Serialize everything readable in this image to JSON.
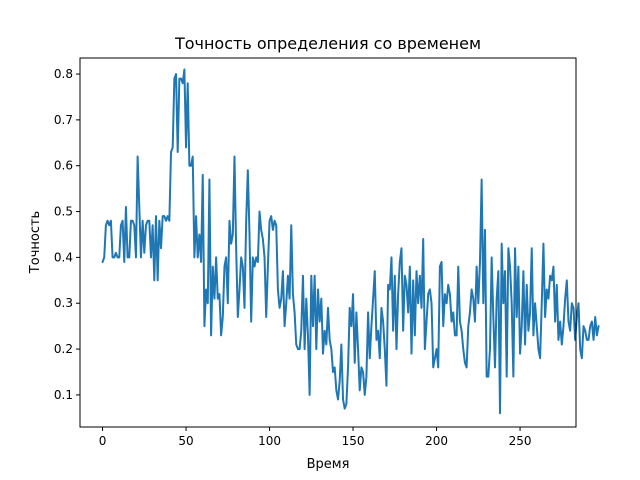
{
  "chart_data": {
    "type": "line",
    "title": "Точность определения со временем",
    "xlabel": "Время",
    "ylabel": "Точность",
    "xlim": [
      -13.5,
      283.5
    ],
    "ylim": [
      0.03,
      0.835
    ],
    "xticks": [
      0,
      50,
      100,
      150,
      200,
      250
    ],
    "yticks": [
      0.1,
      0.2,
      0.3,
      0.4,
      0.5,
      0.6,
      0.7,
      0.8
    ],
    "grid": false,
    "legend": "none",
    "line_color": "#1f77b4",
    "series": [
      {
        "values": [
          0.39,
          0.4,
          0.47,
          0.48,
          0.47,
          0.48,
          0.4,
          0.4,
          0.41,
          0.4,
          0.4,
          0.47,
          0.48,
          0.39,
          0.51,
          0.4,
          0.4,
          0.48,
          0.48,
          0.47,
          0.4,
          0.62,
          0.51,
          0.4,
          0.48,
          0.41,
          0.47,
          0.48,
          0.48,
          0.4,
          0.47,
          0.35,
          0.49,
          0.35,
          0.48,
          0.42,
          0.49,
          0.49,
          0.48,
          0.49,
          0.48,
          0.63,
          0.64,
          0.79,
          0.8,
          0.63,
          0.79,
          0.79,
          0.78,
          0.81,
          0.64,
          0.78,
          0.6,
          0.6,
          0.62,
          0.4,
          0.49,
          0.4,
          0.45,
          0.39,
          0.58,
          0.25,
          0.33,
          0.3,
          0.57,
          0.23,
          0.38,
          0.31,
          0.4,
          0.31,
          0.32,
          0.23,
          0.27,
          0.38,
          0.4,
          0.3,
          0.48,
          0.43,
          0.45,
          0.62,
          0.42,
          0.27,
          0.33,
          0.4,
          0.38,
          0.29,
          0.48,
          0.59,
          0.45,
          0.26,
          0.4,
          0.38,
          0.4,
          0.39,
          0.5,
          0.46,
          0.44,
          0.4,
          0.27,
          0.38,
          0.48,
          0.49,
          0.46,
          0.48,
          0.47,
          0.33,
          0.29,
          0.31,
          0.37,
          0.25,
          0.3,
          0.36,
          0.31,
          0.47,
          0.32,
          0.28,
          0.21,
          0.2,
          0.2,
          0.24,
          0.36,
          0.2,
          0.31,
          0.23,
          0.1,
          0.36,
          0.25,
          0.36,
          0.2,
          0.33,
          0.26,
          0.31,
          0.19,
          0.24,
          0.21,
          0.29,
          0.22,
          0.2,
          0.15,
          0.16,
          0.11,
          0.09,
          0.13,
          0.21,
          0.09,
          0.07,
          0.08,
          0.16,
          0.29,
          0.25,
          0.32,
          0.17,
          0.28,
          0.2,
          0.11,
          0.16,
          0.15,
          0.1,
          0.14,
          0.28,
          0.18,
          0.25,
          0.31,
          0.37,
          0.22,
          0.24,
          0.18,
          0.29,
          0.26,
          0.2,
          0.12,
          0.34,
          0.33,
          0.4,
          0.24,
          0.36,
          0.2,
          0.32,
          0.39,
          0.42,
          0.24,
          0.36,
          0.34,
          0.28,
          0.38,
          0.19,
          0.35,
          0.23,
          0.37,
          0.3,
          0.36,
          0.29,
          0.44,
          0.2,
          0.26,
          0.32,
          0.33,
          0.3,
          0.16,
          0.18,
          0.2,
          0.16,
          0.38,
          0.39,
          0.25,
          0.32,
          0.3,
          0.34,
          0.32,
          0.26,
          0.28,
          0.23,
          0.23,
          0.38,
          0.26,
          0.24,
          0.2,
          0.17,
          0.16,
          0.25,
          0.28,
          0.33,
          0.31,
          0.26,
          0.38,
          0.3,
          0.39,
          0.57,
          0.3,
          0.46,
          0.14,
          0.14,
          0.2,
          0.4,
          0.27,
          0.16,
          0.31,
          0.37,
          0.06,
          0.43,
          0.3,
          0.37,
          0.14,
          0.42,
          0.38,
          0.3,
          0.14,
          0.42,
          0.27,
          0.38,
          0.19,
          0.25,
          0.37,
          0.21,
          0.34,
          0.24,
          0.28,
          0.42,
          0.23,
          0.3,
          0.25,
          0.2,
          0.18,
          0.3,
          0.43,
          0.27,
          0.33,
          0.31,
          0.36,
          0.35,
          0.38,
          0.26,
          0.34,
          0.22,
          0.26,
          0.21,
          0.25,
          0.31,
          0.35,
          0.26,
          0.24,
          0.3,
          0.29,
          0.22,
          0.27,
          0.3,
          0.2,
          0.18,
          0.25,
          0.24,
          0.22,
          0.22,
          0.25,
          0.26,
          0.22,
          0.27,
          0.23,
          0.25
        ]
      }
    ]
  }
}
